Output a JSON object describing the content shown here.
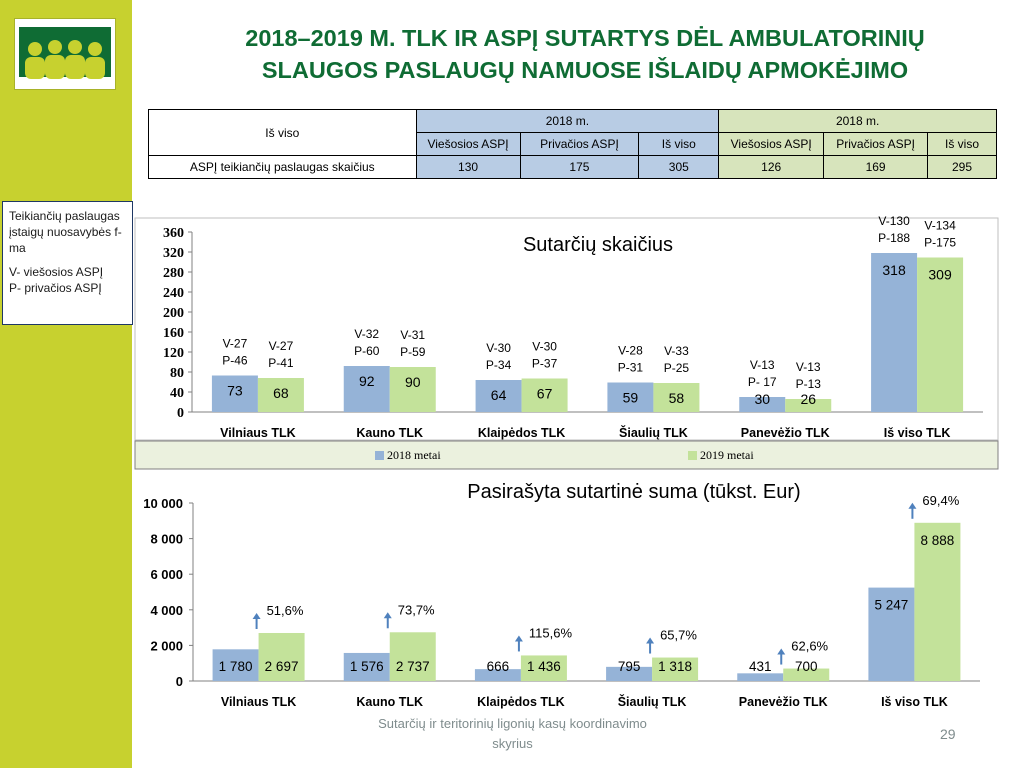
{
  "title": {
    "line1": "2018–2019 M. TLK IR ASPĮ SUTARTYS DĖL AMBULATORINIŲ",
    "line2": "SLAUGOS PASLAUGŲ NAMUOSE IŠLAIDŲ APMOKĖJIMO"
  },
  "table": {
    "corner_label": "Iš viso",
    "group1_label": "2018 m.",
    "group2_label": "2018 m.",
    "columns": [
      "Viešosios ASPĮ",
      "Privačios ASPĮ",
      "Iš viso",
      "Viešosios ASPĮ",
      "Privačios ASPĮ",
      "Iš viso"
    ],
    "row_label": "ASPĮ teikiančių paslaugas skaičius",
    "row_values": [
      "130",
      "175",
      "305",
      "126",
      "169",
      "295"
    ]
  },
  "note": {
    "line1": "Teikiančių paslaugas įstaigų nuosavybės f-ma",
    "line2": "V- viešosios ASPĮ\nP- privačios ASPĮ"
  },
  "colors": {
    "series_2018": "#95b3d7",
    "series_2019": "#c3e29a",
    "title_green": "#0f6c34",
    "sidebar": "#c7d12f",
    "arrow": "#4f81bd"
  },
  "chart_data": [
    {
      "type": "bar",
      "title": "Sutarčių skaičius",
      "categories": [
        "Vilniaus TLK",
        "Kauno TLK",
        "Klaipėdos TLK",
        "Šiaulių TLK",
        "Panevėžio TLK",
        "Iš viso TLK"
      ],
      "series": [
        {
          "name": "2018 metai",
          "values": [
            73,
            92,
            64,
            59,
            30,
            318
          ],
          "annotations": [
            [
              "V-27",
              "P-46"
            ],
            [
              "V-32",
              "P-60"
            ],
            [
              "V-30",
              "P-34"
            ],
            [
              "V-28",
              "P-31"
            ],
            [
              "V-13",
              "P- 17"
            ],
            [
              "V-130",
              "P-188"
            ]
          ]
        },
        {
          "name": "2019 metai",
          "values": [
            68,
            90,
            67,
            58,
            26,
            309
          ],
          "annotations": [
            [
              "V-27",
              "P-41"
            ],
            [
              "V-31",
              "P-59"
            ],
            [
              "V-30",
              "P-37"
            ],
            [
              "V-33",
              "P-25"
            ],
            [
              "V-13",
              "P-13"
            ],
            [
              "V-134",
              "P-175"
            ]
          ]
        }
      ],
      "ylim": [
        0,
        360
      ],
      "yticks": [
        "0",
        "40",
        "80",
        "120",
        "160",
        "200",
        "240",
        "280",
        "320",
        "360"
      ],
      "grid": false,
      "legend": "bottom"
    },
    {
      "type": "bar",
      "title": "Pasirašyta sutartinė suma (tūkst. Eur)",
      "categories": [
        "Vilniaus TLK",
        "Kauno TLK",
        "Klaipėdos TLK",
        "Šiaulių TLK",
        "Panevėžio TLK",
        "Iš viso TLK"
      ],
      "series": [
        {
          "name": "2018",
          "values": [
            1780,
            1576,
            666,
            795,
            431,
            5247
          ],
          "labels": [
            "1 780",
            "1 576",
            "666",
            "795",
            "431",
            "5 247"
          ]
        },
        {
          "name": "2019",
          "values": [
            2697,
            2737,
            1436,
            1318,
            700,
            8888
          ],
          "labels": [
            "2 697",
            "2 737",
            "1 436",
            "1 318",
            "700",
            "8 888"
          ]
        }
      ],
      "growth_labels": [
        "51,6%",
        "73,7%",
        "115,6%",
        "65,7%",
        "62,6%",
        "69,4%"
      ],
      "ylim": [
        0,
        10000
      ],
      "yticks": [
        "0",
        "2 000",
        "4 000",
        "6 000",
        "8 000",
        "10 000"
      ],
      "grid": false,
      "legend": "none"
    }
  ],
  "footer": {
    "text": "Sutarčių ir teritorinių ligonių kasų koordinavimo skyrius",
    "page": "29"
  }
}
